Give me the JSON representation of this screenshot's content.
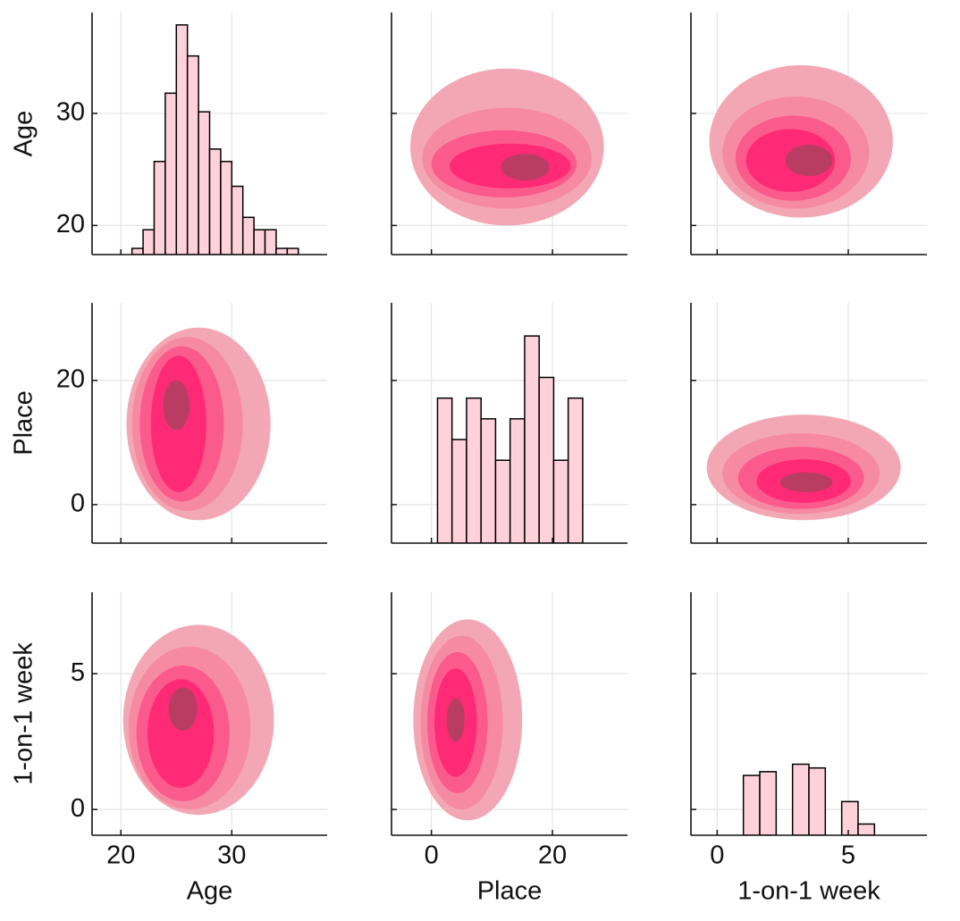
{
  "chart_data": [
    {
      "type": "histogram",
      "ylabel": "Age",
      "bins": [
        21,
        22,
        23,
        24,
        25,
        26,
        27,
        28,
        29,
        30,
        31,
        32,
        33,
        34,
        35,
        36
      ],
      "values": [
        1,
        4,
        15,
        26,
        37,
        32,
        23,
        17,
        15,
        11,
        6,
        4,
        4,
        1,
        1
      ],
      "y2lim": [
        0,
        39
      ],
      "color": "#ffd1da",
      "xlim": [
        17.4,
        38.6
      ],
      "ylim": [
        17.4,
        39.0
      ],
      "xticks": [
        20,
        30
      ],
      "yticks": [
        20,
        30
      ],
      "grid": true
    },
    {
      "type": "kde",
      "levels": [
        {
          "x": 12.5,
          "y": 27,
          "rx": 16,
          "ry": 7
        },
        {
          "x": 12.5,
          "y": 26,
          "rx": 14,
          "ry": 4.5
        },
        {
          "x": 12,
          "y": 25.5,
          "rx": 12,
          "ry": 3
        },
        {
          "x": 13,
          "y": 25.3,
          "rx": 10,
          "ry": 2
        },
        {
          "x": 15.5,
          "y": 25.2,
          "rx": 4,
          "ry": 1.2
        }
      ],
      "colors": [
        "#f3a7b5",
        "#f68aa3",
        "#fb5a8c",
        "#ff2a76",
        "#b93d63"
      ],
      "xlim": [
        -6.6,
        32.4
      ],
      "ylim": [
        17.4,
        39.0
      ],
      "xticks": [
        0,
        20
      ],
      "yticks": [
        20,
        30
      ],
      "grid": true
    },
    {
      "type": "kde",
      "levels": [
        {
          "x": 3.2,
          "y": 27.5,
          "rx": 3.5,
          "ry": 6.8
        },
        {
          "x": 3,
          "y": 26.5,
          "rx": 2.8,
          "ry": 5
        },
        {
          "x": 2.9,
          "y": 26,
          "rx": 2.2,
          "ry": 3.8
        },
        {
          "x": 2.8,
          "y": 25.8,
          "rx": 1.7,
          "ry": 2.8
        },
        {
          "x": 3.5,
          "y": 25.8,
          "rx": 0.9,
          "ry": 1.4
        }
      ],
      "colors": [
        "#f3a7b5",
        "#f68aa3",
        "#fb5a8c",
        "#ff2a76",
        "#b93d63"
      ],
      "xlim": [
        -1,
        8
      ],
      "ylim": [
        17.4,
        39.0
      ],
      "xticks": [
        0,
        5
      ],
      "yticks": [
        20,
        30
      ],
      "grid": true
    },
    {
      "type": "kde",
      "ylabel": "Place",
      "levels": [
        {
          "x": 27,
          "y": 13,
          "rx": 6.5,
          "ry": 15.5
        },
        {
          "x": 26,
          "y": 13,
          "rx": 5,
          "ry": 14
        },
        {
          "x": 25.5,
          "y": 13,
          "rx": 3.8,
          "ry": 12.5
        },
        {
          "x": 25.2,
          "y": 13,
          "rx": 2.5,
          "ry": 11
        },
        {
          "x": 25,
          "y": 16,
          "rx": 1.2,
          "ry": 4
        }
      ],
      "colors": [
        "#f3a7b5",
        "#f68aa3",
        "#fb5a8c",
        "#ff2a76",
        "#b93d63"
      ],
      "xlim": [
        17.4,
        38.6
      ],
      "ylim": [
        -6.2,
        32.5
      ],
      "xticks": [
        20,
        30
      ],
      "yticks": [
        0,
        20
      ],
      "grid": true
    },
    {
      "type": "histogram",
      "bins": [
        1,
        3.4,
        5.8,
        8.2,
        10.6,
        13,
        15.4,
        17.8,
        20.2,
        22.6,
        25
      ],
      "values": [
        7,
        5,
        7,
        6,
        4,
        6,
        10,
        8,
        4,
        7
      ],
      "y2lim": [
        0,
        11.6
      ],
      "color": "#ffd1da",
      "xlim": [
        -6.6,
        32.4
      ],
      "ylim": [
        -6.2,
        32.5
      ],
      "xticks": [
        0,
        20
      ],
      "yticks": [
        0,
        20
      ],
      "grid": true
    },
    {
      "type": "kde",
      "levels": [
        {
          "x": 3.3,
          "y": 6,
          "rx": 3.7,
          "ry": 8.5
        },
        {
          "x": 3.2,
          "y": 5,
          "rx": 3,
          "ry": 6.5
        },
        {
          "x": 3.2,
          "y": 4.3,
          "rx": 2.4,
          "ry": 5
        },
        {
          "x": 3.3,
          "y": 3.8,
          "rx": 1.8,
          "ry": 3.5
        },
        {
          "x": 3.4,
          "y": 3.6,
          "rx": 1,
          "ry": 1.6
        }
      ],
      "colors": [
        "#f3a7b5",
        "#f68aa3",
        "#fb5a8c",
        "#ff2a76",
        "#b93d63"
      ],
      "xlim": [
        -1,
        8
      ],
      "ylim": [
        -6.2,
        32.5
      ],
      "xticks": [
        0,
        5
      ],
      "yticks": [
        0,
        20
      ],
      "grid": true
    },
    {
      "type": "kde",
      "xlabel": "Age",
      "ylabel": "1-on-1 week",
      "levels": [
        {
          "x": 27,
          "y": 3.3,
          "rx": 6.8,
          "ry": 3.5
        },
        {
          "x": 26.2,
          "y": 3,
          "rx": 5.5,
          "ry": 3
        },
        {
          "x": 25.6,
          "y": 2.8,
          "rx": 4.2,
          "ry": 2.5
        },
        {
          "x": 25.4,
          "y": 2.8,
          "rx": 3,
          "ry": 2
        },
        {
          "x": 25.6,
          "y": 3.7,
          "rx": 1.3,
          "ry": 0.8
        }
      ],
      "colors": [
        "#f3a7b5",
        "#f68aa3",
        "#fb5a8c",
        "#ff2a76",
        "#b93d63"
      ],
      "xlim": [
        17.4,
        38.6
      ],
      "ylim": [
        -0.95,
        8
      ],
      "xticks": [
        20,
        30
      ],
      "yticks": [
        0,
        5
      ],
      "grid": true
    },
    {
      "type": "kde",
      "xlabel": "Place",
      "levels": [
        {
          "x": 6,
          "y": 3.3,
          "rx": 9,
          "ry": 3.7
        },
        {
          "x": 5,
          "y": 3.2,
          "rx": 6.8,
          "ry": 3.2
        },
        {
          "x": 4.3,
          "y": 3.2,
          "rx": 5,
          "ry": 2.6
        },
        {
          "x": 4,
          "y": 3.2,
          "rx": 3.5,
          "ry": 2
        },
        {
          "x": 4,
          "y": 3.3,
          "rx": 1.5,
          "ry": 0.8
        }
      ],
      "colors": [
        "#f3a7b5",
        "#f68aa3",
        "#fb5a8c",
        "#ff2a76",
        "#b93d63"
      ],
      "xlim": [
        -6.6,
        32.4
      ],
      "ylim": [
        -0.95,
        8
      ],
      "xticks": [
        0,
        20
      ],
      "yticks": [
        0,
        5
      ],
      "grid": true
    },
    {
      "type": "histogram",
      "xlabel": "1-on-1 week",
      "bins": [
        1,
        1.625,
        2.25,
        2.875,
        3.5,
        4.125,
        4.75,
        5.375,
        6
      ],
      "values": [
        16,
        17,
        0,
        19,
        18,
        0,
        9,
        3
      ],
      "y2lim": [
        0,
        65
      ],
      "color": "#ffd1da",
      "xlim": [
        -1,
        8
      ],
      "ylim": [
        -0.95,
        8
      ],
      "xticks": [
        0,
        5
      ],
      "yticks": [
        0,
        5
      ],
      "grid": true
    }
  ]
}
